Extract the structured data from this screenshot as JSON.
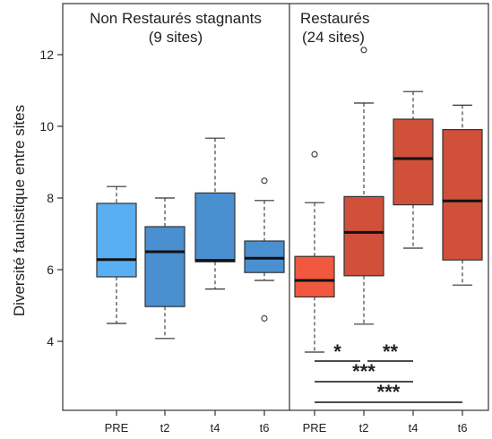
{
  "chart_data": {
    "type": "box",
    "ylabel": "Diversité faunistique entre sites",
    "ylim": [
      3.0,
      13.0
    ],
    "yticks": [
      4,
      6,
      8,
      10,
      12
    ],
    "categories": [
      "PRE",
      "t2",
      "t4",
      "t6"
    ],
    "panels": [
      {
        "title_line1": "Non Restaurés stagnants",
        "title_line2": "(9 sites)",
        "boxes": [
          {
            "category": "PRE",
            "whisker_low": 4.5,
            "q1": 5.8,
            "median": 6.28,
            "q3": 7.85,
            "whisker_high": 8.32,
            "outliers": [],
            "color": "#5aaef2"
          },
          {
            "category": "t2",
            "whisker_low": 4.08,
            "q1": 4.97,
            "median": 6.5,
            "q3": 7.2,
            "whisker_high": 8.0,
            "outliers": [],
            "color": "#4a8fd0"
          },
          {
            "category": "t4",
            "whisker_low": 5.46,
            "q1": 6.22,
            "median": 6.26,
            "q3": 8.14,
            "whisker_high": 9.67,
            "outliers": [],
            "color": "#4a8fd0"
          },
          {
            "category": "t6",
            "whisker_low": 5.7,
            "q1": 5.92,
            "median": 6.32,
            "q3": 6.8,
            "whisker_high": 7.93,
            "outliers": [
              8.48,
              4.64
            ],
            "color": "#4a8fd0"
          }
        ]
      },
      {
        "title_line1": "Restaurés",
        "title_line2": "(24 sites)",
        "boxes": [
          {
            "category": "PRE",
            "whisker_low": 3.7,
            "q1": 5.24,
            "median": 5.7,
            "q3": 6.37,
            "whisker_high": 7.87,
            "outliers": [
              9.22
            ],
            "color": "#f0583f"
          },
          {
            "category": "t2",
            "whisker_low": 4.48,
            "q1": 5.83,
            "median": 7.04,
            "q3": 8.04,
            "whisker_high": 10.65,
            "outliers": [
              12.13
            ],
            "color": "#d0503a"
          },
          {
            "category": "t4",
            "whisker_low": 6.6,
            "q1": 7.81,
            "median": 9.1,
            "q3": 10.2,
            "whisker_high": 10.97,
            "outliers": [],
            "color": "#d0503a"
          },
          {
            "category": "t6",
            "whisker_low": 5.57,
            "q1": 6.27,
            "median": 7.92,
            "q3": 9.91,
            "whisker_high": 10.59,
            "outliers": [],
            "color": "#d0503a"
          }
        ]
      }
    ],
    "significance": [
      {
        "label": "*",
        "from": "PRE",
        "to": "t2"
      },
      {
        "label": "**",
        "from": "t2",
        "to": "t4"
      },
      {
        "label": "***",
        "from": "PRE",
        "to": "t4"
      },
      {
        "label": "***",
        "from": "PRE",
        "to": "t6"
      }
    ]
  }
}
